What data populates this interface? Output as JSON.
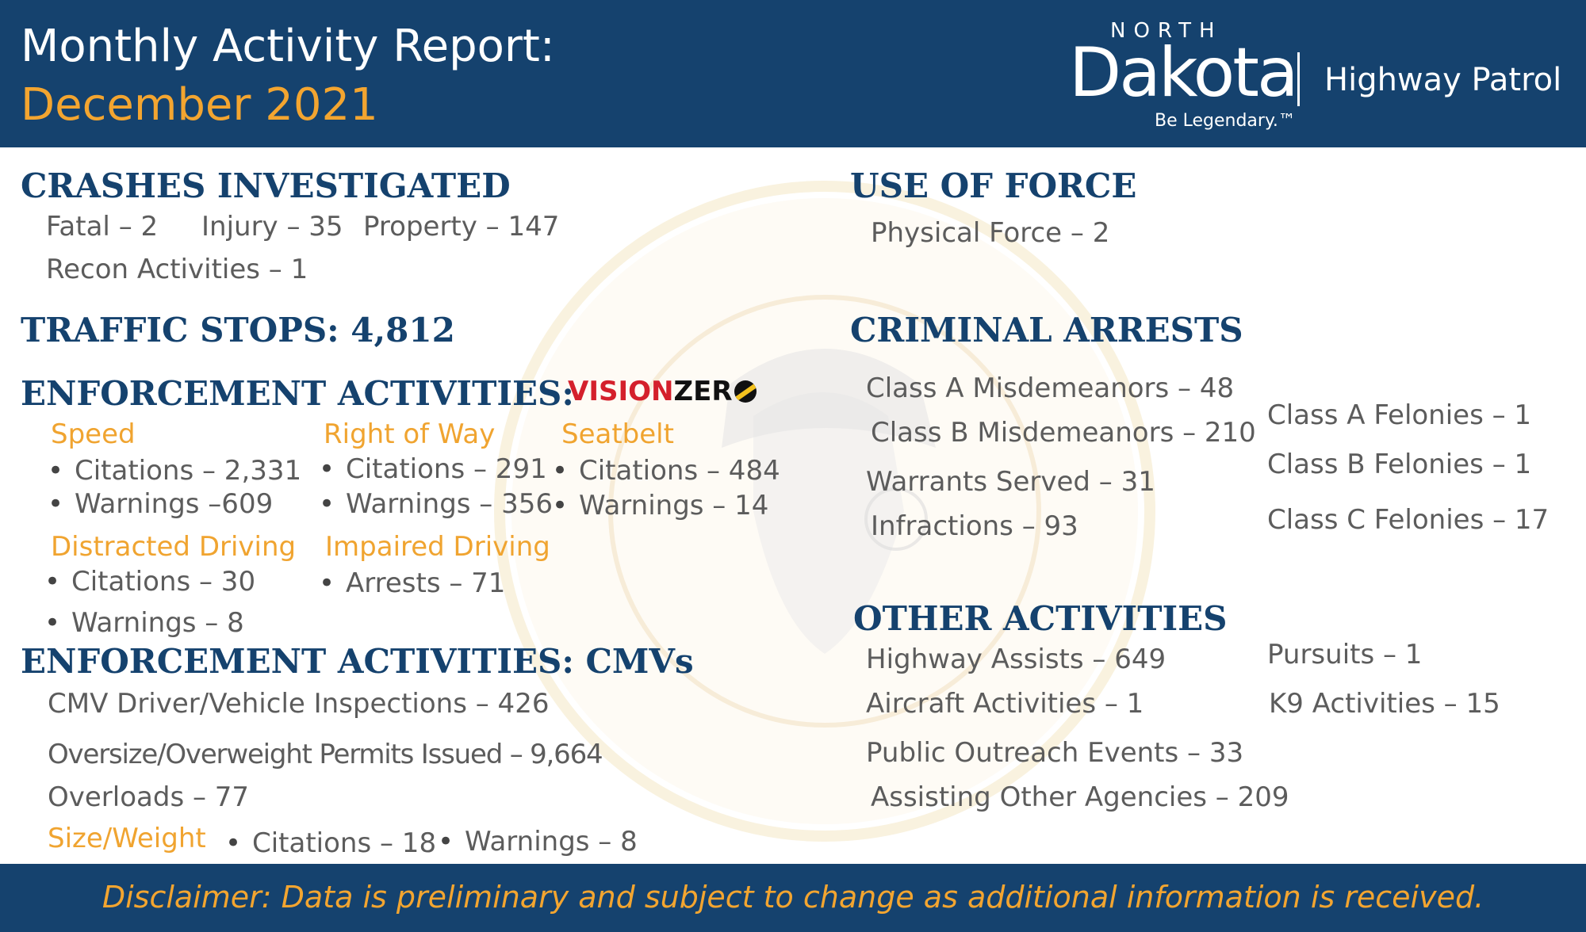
{
  "header": {
    "title_line1": "Monthly Activity Report:",
    "title_line2": "December 2021",
    "logo_north": "NORTH",
    "logo_dakota": "Dakota",
    "logo_tagline": "Be Legendary.™",
    "logo_agency": "Highway Patrol"
  },
  "crashes": {
    "heading": "CRASHES INVESTIGATED",
    "fatal": "Fatal – 2",
    "injury": "Injury – 35",
    "property": "Property – 147",
    "recon": "Recon Activities – 1"
  },
  "traffic_stops": "TRAFFIC STOPS: 4,812",
  "enforcement": {
    "heading": "ENFORCEMENT ACTIVITIES:",
    "vision_zero_a": "VISION",
    "vision_zero_b": "ZER",
    "speed": {
      "label": "Speed",
      "citations": "Citations – 2,331",
      "warnings": "Warnings –609"
    },
    "right_of_way": {
      "label": "Right of Way",
      "citations": "Citations – 291",
      "warnings": "Warnings – 356"
    },
    "seatbelt": {
      "label": "Seatbelt",
      "citations": "Citations – 484",
      "warnings": "Warnings – 14"
    },
    "distracted": {
      "label": "Distracted Driving",
      "citations": "Citations – 30",
      "warnings": "Warnings – 8"
    },
    "impaired": {
      "label": "Impaired Driving",
      "arrests": "Arrests – 71"
    }
  },
  "cmv": {
    "heading": "ENFORCEMENT ACTIVITIES: CMVs",
    "inspections": "CMV Driver/Vehicle Inspections – 426",
    "permits": "Oversize/Overweight Permits Issued – 9,664",
    "overloads": "Overloads – 77",
    "size_weight_label": "Size/Weight",
    "citations": "Citations – 18",
    "warnings": "Warnings – 8"
  },
  "use_of_force": {
    "heading": "USE OF FORCE",
    "physical": "Physical Force – 2"
  },
  "arrests": {
    "heading": "CRIMINAL ARRESTS",
    "class_a_misd": "Class A Misdemeanors – 48",
    "class_b_misd": "Class B Misdemeanors – 210",
    "warrants": "Warrants Served – 31",
    "infractions": "Infractions – 93",
    "class_a_fel": "Class A Felonies – 1",
    "class_b_fel": "Class B Felonies – 1",
    "class_c_fel": "Class C Felonies – 17"
  },
  "other": {
    "heading": "OTHER ACTIVITIES",
    "highway_assists": "Highway Assists – 649",
    "aircraft": "Aircraft Activities – 1",
    "outreach": "Public Outreach Events –  33",
    "assisting": "Assisting Other Agencies – 209",
    "pursuits": "Pursuits – 1",
    "k9": "K9 Activities – 15"
  },
  "footer": {
    "disclaimer": "Disclaimer: Data is preliminary and subject to change as additional information is received."
  },
  "colors": {
    "navy": "#15426e",
    "gold": "#f3a530",
    "text_gray": "#5c5c5c"
  }
}
